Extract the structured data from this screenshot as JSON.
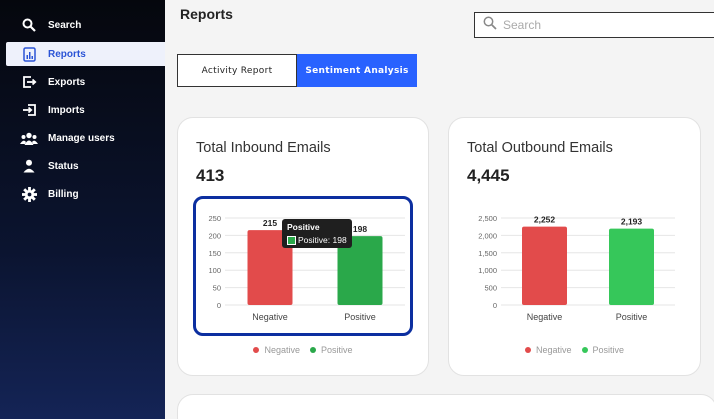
{
  "sidebar": {
    "items": [
      {
        "label": "Search",
        "icon": "search-icon",
        "active": false
      },
      {
        "label": "Reports",
        "icon": "report-icon",
        "active": true
      },
      {
        "label": "Exports",
        "icon": "export-icon",
        "active": false
      },
      {
        "label": "Imports",
        "icon": "import-icon",
        "active": false
      },
      {
        "label": "Manage users",
        "icon": "users-icon",
        "active": false
      },
      {
        "label": "Status",
        "icon": "user-icon",
        "active": false
      },
      {
        "label": "Billing",
        "icon": "gear-icon",
        "active": false
      }
    ]
  },
  "header": {
    "title": "Reports",
    "search_placeholder": "Search"
  },
  "tabs": [
    {
      "label": "Activity Report",
      "active": false
    },
    {
      "label": "Sentiment Analysis",
      "active": true
    }
  ],
  "colors": {
    "accent": "#2962ff",
    "negative": "#e24b4b",
    "positive_inbound": "#2aa84a",
    "positive_outbound": "#36c75a"
  },
  "cards": {
    "inbound": {
      "title": "Total Inbound Emails",
      "value": "413"
    },
    "outbound": {
      "title": "Total Outbound Emails",
      "value": "4,445"
    }
  },
  "tooltip": {
    "title": "Positive",
    "row": "Positive: 198"
  },
  "chart_data": [
    {
      "type": "bar",
      "categories": [
        "Negative",
        "Positive"
      ],
      "values": [
        215,
        198
      ],
      "value_labels": [
        "215",
        "198"
      ],
      "ylim": [
        0,
        250
      ],
      "yticks": [
        "0",
        "50",
        "100",
        "150",
        "200",
        "250"
      ],
      "legend": [
        "Negative",
        "Positive"
      ],
      "legend_position": "bottom",
      "grid": true
    },
    {
      "type": "bar",
      "categories": [
        "Negative",
        "Positive"
      ],
      "values": [
        2252,
        2193
      ],
      "value_labels": [
        "2,252",
        "2,193"
      ],
      "ylim": [
        0,
        2500
      ],
      "yticks": [
        "0",
        "500",
        "1,000",
        "1,500",
        "2,000",
        "2,500"
      ],
      "legend": [
        "Negative",
        "Positive"
      ],
      "legend_position": "bottom",
      "grid": true
    }
  ]
}
